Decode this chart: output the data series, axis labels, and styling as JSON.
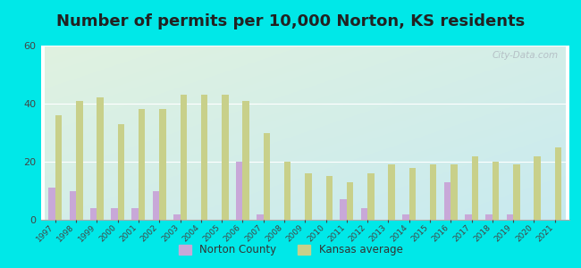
{
  "title": "Number of permits per 10,000 Norton, KS residents",
  "years": [
    1997,
    1998,
    1999,
    2000,
    2001,
    2002,
    2003,
    2004,
    2005,
    2006,
    2007,
    2008,
    2009,
    2010,
    2011,
    2012,
    2013,
    2014,
    2015,
    2016,
    2017,
    2018,
    2019,
    2020,
    2021
  ],
  "norton_county": [
    11,
    10,
    4,
    4,
    4,
    10,
    2,
    0,
    0,
    20,
    2,
    0,
    0,
    0,
    7,
    4,
    0,
    2,
    0,
    13,
    2,
    2,
    2,
    0,
    0
  ],
  "kansas_avg": [
    36,
    41,
    42,
    33,
    38,
    38,
    43,
    43,
    43,
    41,
    30,
    20,
    16,
    15,
    13,
    16,
    19,
    18,
    19,
    19,
    22,
    20,
    19,
    22,
    25
  ],
  "norton_color": "#c8a8d8",
  "kansas_color": "#c8d08a",
  "background_outer": "#00e8e8",
  "background_inner_topleft": "#e0f2e0",
  "background_inner_bottomright": "#c8eaf0",
  "ylim": [
    0,
    60
  ],
  "yticks": [
    0,
    20,
    40,
    60
  ],
  "title_fontsize": 13,
  "watermark": "City-Data.com",
  "legend_norton": "Norton County",
  "legend_kansas": "Kansas average"
}
